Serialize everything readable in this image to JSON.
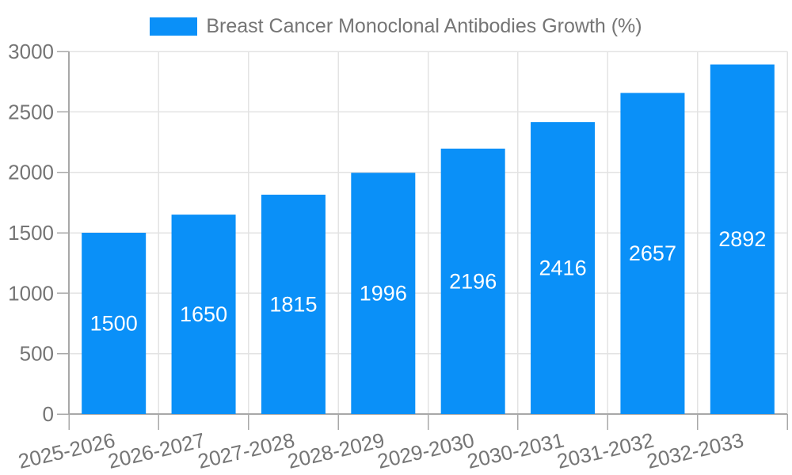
{
  "legend": {
    "label": "Breast Cancer Monoclonal Antibodies Growth (%)"
  },
  "chart_data": {
    "type": "bar",
    "title": "Breast Cancer Monoclonal Antibodies Growth (%)",
    "categories": [
      "2025-2026",
      "2026-2027",
      "2027-2028",
      "2028-2029",
      "2029-2030",
      "2030-2031",
      "2031-2032",
      "2032-2033"
    ],
    "values": [
      1500,
      1650,
      1815,
      1996,
      2196,
      2416,
      2657,
      2892
    ],
    "xlabel": "",
    "ylabel": "",
    "ylim": [
      0,
      3000
    ],
    "yticks": [
      0,
      500,
      1000,
      1500,
      2000,
      2500,
      3000
    ],
    "grid": true,
    "legend_position": "top",
    "value_labels": "inside-bars-centered",
    "x_tick_label_rotation_deg": -13
  },
  "colors": {
    "bar": "#0a90f8",
    "grid": "#e3e3e3",
    "axis": "#a8a8a8",
    "axis_text": "#757575",
    "bar_label_text": "#ffffff",
    "background": "#ffffff"
  }
}
